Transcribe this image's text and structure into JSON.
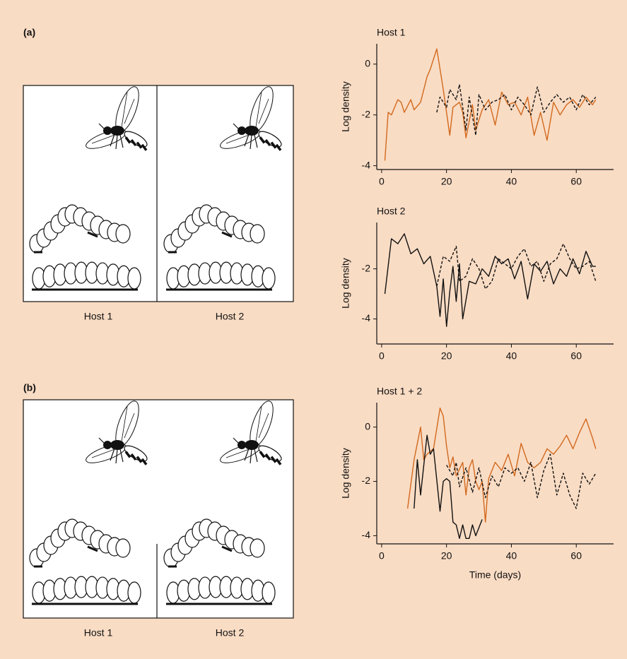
{
  "panels": [
    {
      "label": "(a)",
      "hosts": [
        "Host 1",
        "Host 2"
      ]
    },
    {
      "label": "(b)",
      "hosts": [
        "Host 1",
        "Host 2"
      ]
    }
  ],
  "chart_data": [
    {
      "type": "line",
      "title": "Host 1",
      "ylabel": "Log density",
      "xlim": [
        -1.5,
        71.5
      ],
      "xticks": [
        0,
        20,
        40,
        60
      ],
      "ylim": [
        -4.15,
        0.8
      ],
      "yticks": [
        0,
        -2,
        -4
      ],
      "series": [
        {
          "color": "#d2691e",
          "linestyle": "solid",
          "x": [
            1,
            2,
            3,
            5,
            6,
            7,
            9,
            10,
            12,
            14,
            15,
            17,
            19,
            21,
            22,
            24,
            25,
            26,
            28,
            29,
            31,
            33,
            35,
            37,
            39,
            41,
            43,
            45,
            47,
            49,
            51,
            53,
            55,
            57,
            59,
            61,
            63,
            65,
            66
          ],
          "values": [
            -3.8,
            -1.9,
            -2.0,
            -1.4,
            -1.5,
            -1.9,
            -1.4,
            -1.8,
            -1.5,
            -0.5,
            -0.2,
            0.6,
            -1.0,
            -2.8,
            -1.7,
            -1.5,
            -1.9,
            -2.9,
            -1.6,
            -2.6,
            -1.8,
            -1.4,
            -2.4,
            -1.1,
            -1.6,
            -1.5,
            -2.0,
            -1.3,
            -2.8,
            -1.9,
            -3.0,
            -1.5,
            -2.0,
            -1.6,
            -1.4,
            -1.7,
            -1.3,
            -1.6,
            -1.4
          ]
        },
        {
          "color": "#111111",
          "linestyle": "dashed",
          "x": [
            17,
            18,
            20,
            21,
            23,
            24,
            26,
            27,
            29,
            30,
            32,
            34,
            36,
            38,
            40,
            42,
            44,
            46,
            48,
            50,
            52,
            54,
            56,
            58,
            60,
            62,
            64,
            66
          ],
          "values": [
            -1.9,
            -1.3,
            -1.7,
            -1.0,
            -1.4,
            -0.8,
            -2.6,
            -1.3,
            -2.8,
            -1.2,
            -1.8,
            -1.5,
            -1.4,
            -1.2,
            -1.8,
            -1.3,
            -1.6,
            -2.0,
            -0.9,
            -1.9,
            -1.5,
            -1.2,
            -1.5,
            -1.3,
            -1.8,
            -1.2,
            -1.6,
            -1.3
          ]
        }
      ]
    },
    {
      "type": "line",
      "title": "Host 2",
      "ylabel": "Log density",
      "xlim": [
        -1.5,
        71.5
      ],
      "xticks": [
        0,
        20,
        40,
        60
      ],
      "ylim": [
        -5,
        -0.15
      ],
      "yticks": [
        -2,
        -4
      ],
      "series": [
        {
          "color": "#111111",
          "linestyle": "solid",
          "x": [
            1,
            3,
            5,
            7,
            9,
            11,
            13,
            15,
            17,
            18,
            19,
            20,
            21,
            22,
            23,
            24,
            25,
            27,
            29,
            31,
            33,
            35,
            37,
            39,
            41,
            43,
            45,
            47,
            49,
            51,
            53,
            55,
            57,
            59,
            61,
            63,
            65,
            66
          ],
          "values": [
            -3.0,
            -0.8,
            -1.0,
            -0.6,
            -1.4,
            -1.2,
            -1.8,
            -1.5,
            -2.7,
            -3.9,
            -2.4,
            -4.3,
            -2.9,
            -1.9,
            -3.3,
            -1.8,
            -4.0,
            -2.5,
            -2.6,
            -2.0,
            -2.3,
            -1.5,
            -1.8,
            -1.6,
            -2.4,
            -1.7,
            -3.2,
            -1.8,
            -2.1,
            -1.7,
            -2.6,
            -2.0,
            -2.3,
            -1.6,
            -2.2,
            -1.3,
            -1.9,
            -1.9
          ]
        },
        {
          "color": "#111111",
          "linestyle": "dashed",
          "x": [
            17,
            19,
            21,
            23,
            24,
            26,
            28,
            30,
            32,
            34,
            36,
            38,
            40,
            42,
            44,
            46,
            48,
            50,
            52,
            54,
            56,
            58,
            60,
            62,
            64,
            66
          ],
          "values": [
            -2.7,
            -1.5,
            -1.7,
            -1.1,
            -2.5,
            -2.3,
            -1.6,
            -2.0,
            -2.8,
            -2.5,
            -1.6,
            -1.8,
            -2.0,
            -1.5,
            -1.2,
            -1.9,
            -1.7,
            -2.5,
            -1.8,
            -1.6,
            -1.0,
            -1.6,
            -2.0,
            -1.9,
            -1.7,
            -2.5
          ]
        }
      ]
    },
    {
      "type": "line",
      "title": "Host 1 + 2",
      "ylabel": "Log density",
      "xlabel": "Time (days)",
      "xlim": [
        -1.5,
        71.5
      ],
      "xticks": [
        0,
        20,
        40,
        60
      ],
      "ylim": [
        -4.3,
        0.9
      ],
      "yticks": [
        0,
        -2,
        -4
      ],
      "series": [
        {
          "color": "#d2691e",
          "linestyle": "solid",
          "x": [
            8,
            10,
            12,
            13,
            14,
            16,
            18,
            19,
            20,
            21,
            22,
            23,
            25,
            26,
            27,
            28,
            29,
            30,
            31,
            32,
            33,
            35,
            37,
            39,
            41,
            43,
            45,
            47,
            49,
            51,
            53,
            55,
            57,
            59,
            61,
            63,
            65,
            66
          ],
          "values": [
            -3.0,
            -1.2,
            0.0,
            -1.2,
            -1.0,
            -0.8,
            0.7,
            0.4,
            -0.7,
            -1.5,
            -1.1,
            -1.8,
            -1.3,
            -2.5,
            -1.5,
            -1.2,
            -2.0,
            -2.3,
            -2.0,
            -3.5,
            -1.9,
            -1.3,
            -1.6,
            -1.0,
            -1.8,
            -0.6,
            -1.3,
            -1.5,
            -1.3,
            -0.8,
            -1.0,
            -0.7,
            -0.3,
            -0.8,
            -0.2,
            0.3,
            -0.4,
            -0.8
          ]
        },
        {
          "color": "#111111",
          "linestyle": "solid",
          "x": [
            10,
            11,
            12,
            14,
            15,
            16,
            18,
            19,
            20,
            21,
            22,
            23,
            24,
            25,
            26,
            27,
            28,
            29,
            30,
            31
          ],
          "values": [
            -3.0,
            -1.2,
            -2.5,
            -0.3,
            -1.0,
            -0.8,
            -3.1,
            -2.0,
            -1.9,
            -2.0,
            -3.5,
            -3.6,
            -4.1,
            -3.6,
            -4.1,
            -4.1,
            -3.6,
            -4.0,
            -3.7,
            -3.4
          ]
        },
        {
          "color": "#111111",
          "linestyle": "dashed",
          "x": [
            20,
            22,
            23,
            24,
            26,
            28,
            30,
            32,
            34,
            36,
            38,
            40,
            42,
            44,
            46,
            48,
            50,
            52,
            54,
            56,
            58,
            60,
            62,
            64,
            66
          ],
          "values": [
            -1.4,
            -1.8,
            -1.3,
            -2.2,
            -1.5,
            -2.4,
            -1.5,
            -2.6,
            -1.8,
            -2.2,
            -1.5,
            -1.7,
            -1.5,
            -2.0,
            -1.3,
            -2.6,
            -1.6,
            -1.0,
            -2.5,
            -1.7,
            -2.5,
            -3.0,
            -1.7,
            -2.1,
            -1.7
          ]
        }
      ]
    }
  ]
}
